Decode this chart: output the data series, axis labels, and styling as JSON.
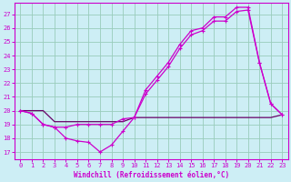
{
  "background_color": "#cdeef5",
  "line_color": "#cc00cc",
  "line_color2": "#660066",
  "grid_color": "#99ccbb",
  "ylabel_values": [
    17,
    18,
    19,
    20,
    21,
    22,
    23,
    24,
    25,
    26,
    27
  ],
  "xlabel_values": [
    0,
    1,
    2,
    3,
    4,
    5,
    6,
    7,
    8,
    9,
    10,
    11,
    12,
    13,
    14,
    15,
    16,
    17,
    18,
    19,
    20,
    21,
    22,
    23
  ],
  "xlabel_label": "Windchill (Refroidissement éolien,°C)",
  "ylim": [
    16.5,
    27.8
  ],
  "xlim": [
    -0.5,
    23.5
  ],
  "line1_x": [
    0,
    1,
    2,
    3,
    4,
    5,
    6,
    7,
    8,
    9,
    10,
    11,
    12,
    13,
    14,
    15,
    16,
    17,
    18,
    19,
    20,
    21,
    22,
    23
  ],
  "line1_y": [
    20.0,
    19.8,
    19.0,
    18.8,
    18.0,
    17.8,
    17.7,
    17.0,
    17.5,
    18.5,
    19.5,
    21.2,
    22.2,
    23.2,
    24.5,
    25.5,
    25.8,
    26.5,
    26.5,
    27.2,
    27.3,
    23.5,
    20.5,
    19.7
  ],
  "line2_x": [
    0,
    1,
    2,
    3,
    4,
    5,
    6,
    7,
    8,
    9,
    10,
    11,
    12,
    13,
    14,
    15,
    16,
    17,
    18,
    19,
    20,
    21,
    22,
    23
  ],
  "line2_y": [
    20.0,
    19.8,
    19.0,
    18.8,
    18.8,
    19.0,
    19.0,
    19.0,
    19.0,
    19.4,
    19.5,
    21.5,
    22.5,
    23.5,
    24.8,
    25.8,
    26.0,
    26.8,
    26.8,
    27.5,
    27.5,
    23.5,
    20.5,
    19.7
  ],
  "line3_x": [
    0,
    1,
    2,
    3,
    4,
    5,
    6,
    7,
    8,
    9,
    10,
    11,
    12,
    13,
    14,
    15,
    16,
    17,
    18,
    19,
    20,
    21,
    22,
    23
  ],
  "line3_y": [
    20.0,
    20.0,
    20.0,
    19.2,
    19.2,
    19.2,
    19.2,
    19.2,
    19.2,
    19.2,
    19.5,
    19.5,
    19.5,
    19.5,
    19.5,
    19.5,
    19.5,
    19.5,
    19.5,
    19.5,
    19.5,
    19.5,
    19.5,
    19.7
  ],
  "tick_fontsize": 5,
  "xlabel_fontsize": 5.5
}
